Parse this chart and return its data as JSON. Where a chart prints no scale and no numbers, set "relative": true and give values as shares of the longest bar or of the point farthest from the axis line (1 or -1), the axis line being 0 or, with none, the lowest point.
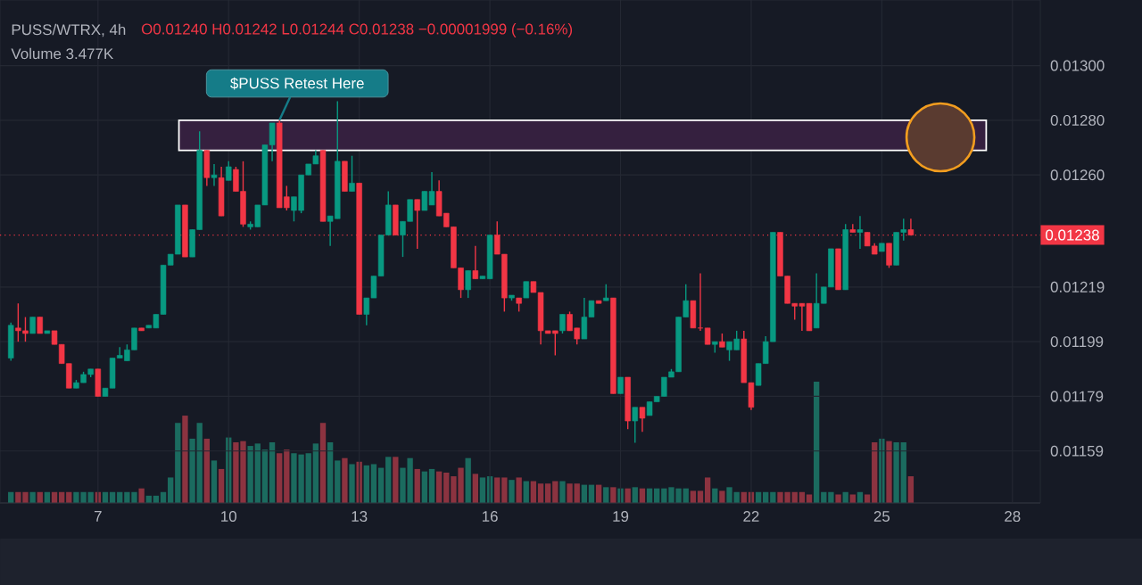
{
  "chart_data": [
    {
      "type": "candlestick",
      "title": "PUSS/WTRX, 4h",
      "subtitle": "O0.01240 H0.01242 L0.01244 C0.01238 −0.00001999 (−0.16%)",
      "annotations": [
        "Volume 3.477K",
        {
          "text": "$PUSS Retest Here",
          "x": 11.167,
          "y": 0.0128
        }
      ],
      "x": [
        5,
        5.167,
        5.333,
        5.5,
        5.667,
        5.833,
        6,
        6.167,
        6.333,
        6.5,
        6.667,
        6.833,
        7,
        7.167,
        7.333,
        7.5,
        7.667,
        7.833,
        8,
        8.167,
        8.333,
        8.5,
        8.667,
        8.833,
        9,
        9.167,
        9.333,
        9.5,
        9.667,
        9.833,
        10,
        10.167,
        10.333,
        10.5,
        10.667,
        10.833,
        11,
        11.167,
        11.333,
        11.5,
        11.667,
        11.833,
        12,
        12.167,
        12.333,
        12.5,
        12.667,
        12.833,
        13,
        13.167,
        13.333,
        13.5,
        13.667,
        13.833,
        14,
        14.167,
        14.333,
        14.5,
        14.667,
        14.833,
        15,
        15.167,
        15.333,
        15.5,
        15.667,
        15.833,
        16,
        16.167,
        16.333,
        16.5,
        16.667,
        16.833,
        17,
        17.167,
        17.333,
        17.5,
        17.667,
        17.833,
        18,
        18.167,
        18.333,
        18.5,
        18.667,
        18.833,
        19,
        19.167,
        19.333,
        19.5,
        19.667,
        19.833,
        20,
        20.167,
        20.333,
        20.5,
        20.667,
        20.833,
        21,
        21.167,
        21.333,
        21.5,
        21.667,
        21.833,
        22,
        22.167,
        22.333,
        22.5,
        22.667,
        22.833,
        23,
        23.167,
        23.333,
        23.5,
        23.667,
        23.833,
        24,
        24.167,
        24.333,
        24.5,
        24.667,
        24.833,
        25,
        25.167,
        25.333,
        25.5,
        25.667
      ],
      "ohlc": [
        [
          0.01193,
          0.01206,
          0.01192,
          0.01205
        ],
        [
          0.01204,
          0.01213,
          0.01199,
          0.01203
        ],
        [
          0.01203,
          0.01208,
          0.01199,
          0.01202
        ],
        [
          0.01202,
          0.01208,
          0.01202,
          0.01208
        ],
        [
          0.01208,
          0.01208,
          0.01202,
          0.01202
        ],
        [
          0.01202,
          0.01203,
          0.01202,
          0.01203
        ],
        [
          0.01203,
          0.01203,
          0.01198,
          0.01198
        ],
        [
          0.01198,
          0.01198,
          0.01191,
          0.01191
        ],
        [
          0.01191,
          0.01191,
          0.01182,
          0.01182
        ],
        [
          0.01182,
          0.01185,
          0.01182,
          0.01184
        ],
        [
          0.01184,
          0.01188,
          0.01184,
          0.01187
        ],
        [
          0.01187,
          0.01189,
          0.01186,
          0.01189
        ],
        [
          0.01189,
          0.01189,
          0.01179,
          0.01179
        ],
        [
          0.01179,
          0.01182,
          0.01179,
          0.01182
        ],
        [
          0.01182,
          0.01193,
          0.01182,
          0.01193
        ],
        [
          0.01193,
          0.01197,
          0.01193,
          0.01194
        ],
        [
          0.01192,
          0.01198,
          0.01192,
          0.01196
        ],
        [
          0.01196,
          0.01204,
          0.01196,
          0.01204
        ],
        [
          0.01204,
          0.01204,
          0.01203,
          0.01203
        ],
        [
          0.01204,
          0.01205,
          0.01204,
          0.01205
        ],
        [
          0.01204,
          0.01209,
          0.01204,
          0.01209
        ],
        [
          0.01209,
          0.01227,
          0.01209,
          0.01227
        ],
        [
          0.01227,
          0.01231,
          0.01227,
          0.01231
        ],
        [
          0.01231,
          0.01249,
          0.01231,
          0.01249
        ],
        [
          0.01249,
          0.01249,
          0.0123,
          0.0123
        ],
        [
          0.0123,
          0.0124,
          0.0123,
          0.0124
        ],
        [
          0.0124,
          0.01276,
          0.0124,
          0.01269
        ],
        [
          0.01269,
          0.01269,
          0.01256,
          0.01259
        ],
        [
          0.01259,
          0.01264,
          0.01256,
          0.0126
        ],
        [
          0.01259,
          0.01263,
          0.01245,
          0.01245
        ],
        [
          0.01258,
          0.01265,
          0.01258,
          0.01263
        ],
        [
          0.01262,
          0.01263,
          0.01254,
          0.01254
        ],
        [
          0.01254,
          0.01265,
          0.01241,
          0.01242
        ],
        [
          0.01241,
          0.01243,
          0.0124,
          0.01242
        ],
        [
          0.01241,
          0.01249,
          0.01241,
          0.01249
        ],
        [
          0.01249,
          0.01271,
          0.01249,
          0.01271
        ],
        [
          0.01271,
          0.01279,
          0.01265,
          0.01279
        ],
        [
          0.01279,
          0.0128,
          0.01248,
          0.01248
        ],
        [
          0.01252,
          0.01256,
          0.01247,
          0.01248
        ],
        [
          0.01247,
          0.01252,
          0.01243,
          0.01252
        ],
        [
          0.01247,
          0.0126,
          0.01246,
          0.0126
        ],
        [
          0.0126,
          0.01264,
          0.0126,
          0.01264
        ],
        [
          0.01264,
          0.01269,
          0.01264,
          0.01267
        ],
        [
          0.01269,
          0.01269,
          0.01243,
          0.01243
        ],
        [
          0.01243,
          0.01245,
          0.01234,
          0.01245
        ],
        [
          0.01244,
          0.01287,
          0.01244,
          0.01265
        ],
        [
          0.01265,
          0.01265,
          0.01254,
          0.01254
        ],
        [
          0.01254,
          0.01267,
          0.01254,
          0.01257
        ],
        [
          0.01257,
          0.01257,
          0.01209,
          0.01209
        ],
        [
          0.01209,
          0.01215,
          0.01205,
          0.01215
        ],
        [
          0.01215,
          0.01223,
          0.01215,
          0.01223
        ],
        [
          0.01223,
          0.01238,
          0.01223,
          0.01238
        ],
        [
          0.01238,
          0.01254,
          0.01238,
          0.01249
        ],
        [
          0.01249,
          0.01249,
          0.01238,
          0.01238
        ],
        [
          0.01238,
          0.01243,
          0.0123,
          0.01243
        ],
        [
          0.01243,
          0.01251,
          0.01243,
          0.01251
        ],
        [
          0.01251,
          0.01251,
          0.01233,
          0.01247
        ],
        [
          0.01247,
          0.01254,
          0.01247,
          0.01254
        ],
        [
          0.01249,
          0.01261,
          0.01249,
          0.01254
        ],
        [
          0.01254,
          0.01258,
          0.01245,
          0.01245
        ],
        [
          0.01246,
          0.01246,
          0.01241,
          0.01241
        ],
        [
          0.01241,
          0.01241,
          0.01226,
          0.01226
        ],
        [
          0.01226,
          0.01226,
          0.01215,
          0.01218
        ],
        [
          0.01218,
          0.01225,
          0.01215,
          0.01225
        ],
        [
          0.01225,
          0.01234,
          0.01222,
          0.01222
        ],
        [
          0.01222,
          0.01223,
          0.01222,
          0.01223
        ],
        [
          0.01222,
          0.01238,
          0.01222,
          0.01238
        ],
        [
          0.01238,
          0.01243,
          0.01231,
          0.01231
        ],
        [
          0.01231,
          0.01231,
          0.0121,
          0.01215
        ],
        [
          0.01215,
          0.01216,
          0.01214,
          0.01216
        ],
        [
          0.01215,
          0.01215,
          0.0121,
          0.01213
        ],
        [
          0.01215,
          0.01221,
          0.01215,
          0.01221
        ],
        [
          0.01221,
          0.01221,
          0.01217,
          0.01217
        ],
        [
          0.01217,
          0.01217,
          0.01198,
          0.01203
        ],
        [
          0.01203,
          0.01203,
          0.01202,
          0.01202
        ],
        [
          0.01203,
          0.01203,
          0.01194,
          0.01202
        ],
        [
          0.01203,
          0.01209,
          0.01202,
          0.01209
        ],
        [
          0.01209,
          0.0121,
          0.01203,
          0.01203
        ],
        [
          0.01204,
          0.01204,
          0.01198,
          0.012
        ],
        [
          0.012,
          0.01215,
          0.012,
          0.01208
        ],
        [
          0.01208,
          0.01214,
          0.01208,
          0.01214
        ],
        [
          0.01214,
          0.01214,
          0.01213,
          0.01213
        ],
        [
          0.01214,
          0.0122,
          0.01214,
          0.01215
        ],
        [
          0.01215,
          0.01215,
          0.0118,
          0.0118
        ],
        [
          0.0118,
          0.01186,
          0.0118,
          0.01186
        ],
        [
          0.01186,
          0.01186,
          0.01167,
          0.0117
        ],
        [
          0.0117,
          0.01175,
          0.01162,
          0.01175
        ],
        [
          0.01175,
          0.01175,
          0.01166,
          0.01171
        ],
        [
          0.01172,
          0.01177,
          0.01172,
          0.01177
        ],
        [
          0.01177,
          0.01179,
          0.01177,
          0.01179
        ],
        [
          0.01179,
          0.01186,
          0.01179,
          0.01186
        ],
        [
          0.01186,
          0.01189,
          0.01186,
          0.01188
        ],
        [
          0.01188,
          0.01208,
          0.01188,
          0.01208
        ],
        [
          0.01208,
          0.0122,
          0.01208,
          0.01214
        ],
        [
          0.01214,
          0.01214,
          0.01204,
          0.01204
        ],
        [
          0.01204,
          0.01224,
          0.01203,
          0.01204
        ],
        [
          0.01204,
          0.01204,
          0.01198,
          0.01198
        ],
        [
          0.01198,
          0.01199,
          0.01195,
          0.01199
        ],
        [
          0.01199,
          0.01202,
          0.01197,
          0.01197
        ],
        [
          0.01196,
          0.01199,
          0.01192,
          0.01199
        ],
        [
          0.01196,
          0.01203,
          0.01196,
          0.012
        ],
        [
          0.012,
          0.01203,
          0.01184,
          0.01184
        ],
        [
          0.01184,
          0.01184,
          0.01174,
          0.01175
        ],
        [
          0.01183,
          0.01191,
          0.01183,
          0.01191
        ],
        [
          0.01191,
          0.01201,
          0.01191,
          0.01199
        ],
        [
          0.01199,
          0.01239,
          0.01199,
          0.01239
        ],
        [
          0.01239,
          0.01239,
          0.01223,
          0.01223
        ],
        [
          0.01223,
          0.01223,
          0.01213,
          0.01213
        ],
        [
          0.01213,
          0.01213,
          0.01207,
          0.01212
        ],
        [
          0.01213,
          0.01213,
          0.01203,
          0.01212
        ],
        [
          0.01213,
          0.01213,
          0.01203,
          0.01203
        ],
        [
          0.01204,
          0.01224,
          0.01204,
          0.01213
        ],
        [
          0.01213,
          0.01219,
          0.01213,
          0.01219
        ],
        [
          0.01219,
          0.01233,
          0.01219,
          0.01233
        ],
        [
          0.01233,
          0.01233,
          0.01218,
          0.01218
        ],
        [
          0.01218,
          0.01242,
          0.01218,
          0.0124
        ],
        [
          0.0124,
          0.01242,
          0.01239,
          0.01239
        ],
        [
          0.01239,
          0.01245,
          0.01233,
          0.0124
        ],
        [
          0.01239,
          0.01239,
          0.01234,
          0.01234
        ],
        [
          0.01234,
          0.01235,
          0.01231,
          0.01231
        ],
        [
          0.01232,
          0.01235,
          0.01232,
          0.01235
        ],
        [
          0.01235,
          0.01235,
          0.01226,
          0.01227
        ],
        [
          0.01227,
          0.01239,
          0.01227,
          0.01239
        ],
        [
          0.01239,
          0.01244,
          0.01236,
          0.0124
        ],
        [
          0.0124,
          0.01244,
          0.01238,
          0.01238
        ]
      ],
      "colors": [
        "#089981",
        "#f23645",
        "#f23645",
        "#089981",
        "#f23645",
        "#089981",
        "#f23645",
        "#f23645",
        "#f23645",
        "#089981",
        "#089981",
        "#089981",
        "#f23645",
        "#089981",
        "#089981",
        "#089981",
        "#089981",
        "#089981",
        "#f23645",
        "#089981",
        "#089981",
        "#089981",
        "#089981",
        "#089981",
        "#f23645",
        "#089981",
        "#089981",
        "#f23645",
        "#089981",
        "#f23645",
        "#089981",
        "#f23645",
        "#f23645",
        "#089981",
        "#089981",
        "#089981",
        "#089981",
        "#f23645",
        "#f23645",
        "#089981",
        "#089981",
        "#089981",
        "#089981",
        "#f23645",
        "#089981",
        "#089981",
        "#f23645",
        "#089981",
        "#f23645",
        "#089981",
        "#089981",
        "#089981",
        "#089981",
        "#f23645",
        "#089981",
        "#089981",
        "#f23645",
        "#089981",
        "#089981",
        "#f23645",
        "#f23645",
        "#f23645",
        "#f23645",
        "#089981",
        "#f23645",
        "#089981",
        "#089981",
        "#f23645",
        "#f23645",
        "#089981",
        "#f23645",
        "#089981",
        "#f23645",
        "#f23645",
        "#f23645",
        "#f23645",
        "#089981",
        "#f23645",
        "#f23645",
        "#089981",
        "#089981",
        "#f23645",
        "#089981",
        "#f23645",
        "#089981",
        "#f23645",
        "#089981",
        "#f23645",
        "#089981",
        "#089981",
        "#089981",
        "#089981",
        "#089981",
        "#089981",
        "#f23645",
        "#f23645",
        "#f23645",
        "#089981",
        "#f23645",
        "#089981",
        "#089981",
        "#f23645",
        "#f23645",
        "#089981",
        "#089981",
        "#089981",
        "#f23645",
        "#f23645",
        "#f23645",
        "#f23645",
        "#f23645",
        "#089981",
        "#089981",
        "#089981",
        "#f23645",
        "#089981",
        "#f23645",
        "#089981",
        "#f23645",
        "#f23645",
        "#089981",
        "#f23645",
        "#089981",
        "#089981",
        "#f23645"
      ],
      "xlim": [
        4.75,
        28.64
      ],
      "ylim": [
        0.0114,
        0.01324
      ],
      "xticks": [
        7,
        10,
        13,
        16,
        19,
        22,
        25,
        28
      ],
      "yticks": [
        {
          "value": 0.013,
          "label": "0.01300"
        },
        {
          "value": 0.0128,
          "label": "0.01280"
        },
        {
          "value": 0.0126,
          "label": "0.01260"
        },
        {
          "value": 0.01219,
          "label": "0.01219"
        },
        {
          "value": 0.01199,
          "label": "0.01199"
        },
        {
          "value": 0.01179,
          "label": "0.01179"
        },
        {
          "value": 0.01159,
          "label": "0.01159"
        }
      ],
      "grid": true,
      "ref_lines": [
        {
          "axis": "y",
          "value": 0.01238,
          "label": "0.01238",
          "color": "#f23645",
          "line_style": "dotted"
        }
      ],
      "bands": [
        {
          "axis": "y",
          "from": 0.01269,
          "to": 0.0128,
          "color": "#35203f"
        }
      ]
    },
    {
      "type": "bar",
      "relative": true,
      "categories": [
        null,
        null,
        null,
        null,
        null,
        null,
        null,
        null,
        null,
        null,
        null,
        null,
        null,
        null,
        null,
        null,
        null,
        null,
        null,
        null,
        null,
        null,
        null,
        null,
        null,
        null,
        null,
        null,
        null,
        null,
        null,
        null,
        null,
        null,
        null,
        null,
        null,
        null,
        null,
        null,
        null,
        null,
        null,
        null,
        null,
        null,
        null,
        null,
        null,
        null,
        null,
        null,
        null,
        null,
        null,
        null,
        null,
        null,
        null,
        null,
        null,
        null,
        null,
        null,
        null,
        null,
        null,
        null,
        null,
        null,
        null,
        null,
        null,
        null,
        null,
        null,
        null,
        null,
        null,
        null,
        null,
        null,
        null,
        null,
        null,
        null,
        null,
        null,
        null,
        null,
        null,
        null,
        null,
        null,
        null,
        null,
        null,
        null,
        null,
        null,
        null,
        null,
        null,
        null,
        null,
        null,
        null,
        null,
        null,
        null,
        null,
        null,
        null,
        null,
        null,
        null,
        null,
        null,
        null,
        null,
        null,
        null,
        null,
        null,
        null
      ],
      "values": [
        0.09,
        0.09,
        0.09,
        0.09,
        0.09,
        0.09,
        0.09,
        0.09,
        0.09,
        0.09,
        0.09,
        0.09,
        0.09,
        0.09,
        0.09,
        0.09,
        0.09,
        0.09,
        0.12,
        0.06,
        0.06,
        0.09,
        0.21,
        0.66,
        0.72,
        0.53,
        0.66,
        0.53,
        0.35,
        0.28,
        0.54,
        0.5,
        0.51,
        0.47,
        0.49,
        0.44,
        0.5,
        0.41,
        0.44,
        0.41,
        0.4,
        0.41,
        0.49,
        0.66,
        0.5,
        0.35,
        0.37,
        0.32,
        0.34,
        0.31,
        0.32,
        0.29,
        0.38,
        0.38,
        0.29,
        0.37,
        0.28,
        0.26,
        0.28,
        0.26,
        0.25,
        0.22,
        0.29,
        0.37,
        0.24,
        0.21,
        0.22,
        0.21,
        0.21,
        0.19,
        0.21,
        0.18,
        0.18,
        0.16,
        0.16,
        0.18,
        0.18,
        0.16,
        0.16,
        0.15,
        0.15,
        0.15,
        0.13,
        0.13,
        0.12,
        0.12,
        0.13,
        0.12,
        0.12,
        0.12,
        0.12,
        0.13,
        0.12,
        0.12,
        0.1,
        0.1,
        0.21,
        0.12,
        0.1,
        0.13,
        0.09,
        0.09,
        0.09,
        0.09,
        0.09,
        0.09,
        0.09,
        0.09,
        0.09,
        0.09,
        0.07,
        1,
        0.09,
        0.09,
        0.07,
        0.09,
        0.07,
        0.09,
        0.07,
        0.5,
        0.53,
        0.51,
        0.5,
        0.5,
        0.22
      ],
      "colors": [
        "#1b6b5f",
        "#8c3340",
        "#8c3340",
        "#1b6b5f",
        "#8c3340",
        "#1b6b5f",
        "#8c3340",
        "#8c3340",
        "#8c3340",
        "#1b6b5f",
        "#1b6b5f",
        "#1b6b5f",
        "#8c3340",
        "#1b6b5f",
        "#1b6b5f",
        "#1b6b5f",
        "#1b6b5f",
        "#1b6b5f",
        "#8c3340",
        "#1b6b5f",
        "#1b6b5f",
        "#1b6b5f",
        "#1b6b5f",
        "#1b6b5f",
        "#8c3340",
        "#1b6b5f",
        "#1b6b5f",
        "#8c3340",
        "#1b6b5f",
        "#8c3340",
        "#1b6b5f",
        "#8c3340",
        "#8c3340",
        "#1b6b5f",
        "#1b6b5f",
        "#1b6b5f",
        "#1b6b5f",
        "#8c3340",
        "#8c3340",
        "#1b6b5f",
        "#1b6b5f",
        "#1b6b5f",
        "#1b6b5f",
        "#8c3340",
        "#1b6b5f",
        "#1b6b5f",
        "#8c3340",
        "#1b6b5f",
        "#8c3340",
        "#1b6b5f",
        "#1b6b5f",
        "#1b6b5f",
        "#1b6b5f",
        "#8c3340",
        "#1b6b5f",
        "#1b6b5f",
        "#8c3340",
        "#1b6b5f",
        "#1b6b5f",
        "#8c3340",
        "#8c3340",
        "#8c3340",
        "#8c3340",
        "#1b6b5f",
        "#8c3340",
        "#1b6b5f",
        "#1b6b5f",
        "#8c3340",
        "#8c3340",
        "#1b6b5f",
        "#8c3340",
        "#1b6b5f",
        "#8c3340",
        "#8c3340",
        "#8c3340",
        "#8c3340",
        "#1b6b5f",
        "#8c3340",
        "#8c3340",
        "#1b6b5f",
        "#1b6b5f",
        "#8c3340",
        "#1b6b5f",
        "#8c3340",
        "#1b6b5f",
        "#8c3340",
        "#1b6b5f",
        "#8c3340",
        "#1b6b5f",
        "#1b6b5f",
        "#1b6b5f",
        "#1b6b5f",
        "#1b6b5f",
        "#1b6b5f",
        "#8c3340",
        "#8c3340",
        "#8c3340",
        "#1b6b5f",
        "#8c3340",
        "#1b6b5f",
        "#1b6b5f",
        "#8c3340",
        "#8c3340",
        "#1b6b5f",
        "#1b6b5f",
        "#1b6b5f",
        "#8c3340",
        "#8c3340",
        "#8c3340",
        "#8c3340",
        "#8c3340",
        "#1b6b5f",
        "#1b6b5f",
        "#1b6b5f",
        "#8c3340",
        "#1b6b5f",
        "#8c3340",
        "#1b6b5f",
        "#8c3340",
        "#8c3340",
        "#1b6b5f",
        "#8c3340",
        "#1b6b5f",
        "#1b6b5f",
        "#8c3340"
      ]
    }
  ]
}
